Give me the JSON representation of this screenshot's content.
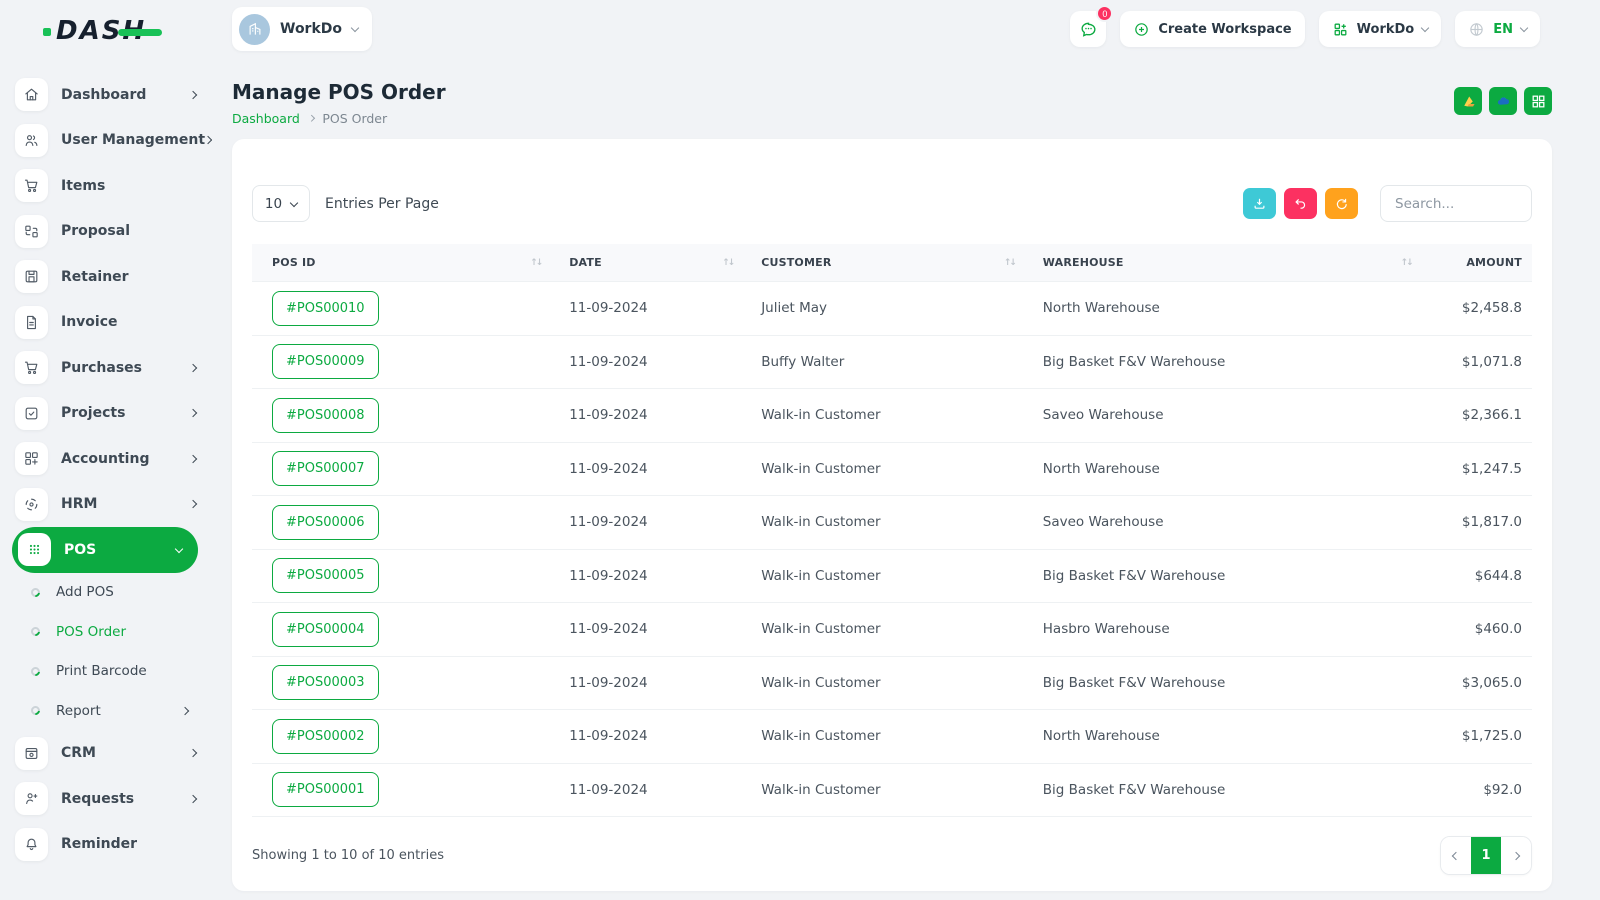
{
  "brand": {
    "logo_text": "DASH"
  },
  "topbar": {
    "workspace_name": "WorkDo",
    "messages_badge": "0",
    "create_workspace_label": "Create Workspace",
    "workdo_label": "WorkDo",
    "language": "EN"
  },
  "sidebar": {
    "items": [
      {
        "label": "Dashboard",
        "icon": "home",
        "chevron": "right"
      },
      {
        "label": "User Management",
        "icon": "users",
        "chevron": "right"
      },
      {
        "label": "Items",
        "icon": "cart"
      },
      {
        "label": "Proposal",
        "icon": "proposal"
      },
      {
        "label": "Retainer",
        "icon": "retainer"
      },
      {
        "label": "Invoice",
        "icon": "invoice"
      },
      {
        "label": "Purchases",
        "icon": "cart",
        "chevron": "right"
      },
      {
        "label": "Projects",
        "icon": "projects",
        "chevron": "right"
      },
      {
        "label": "Accounting",
        "icon": "accounting",
        "chevron": "right"
      },
      {
        "label": "HRM",
        "icon": "hrm",
        "chevron": "right"
      },
      {
        "label": "POS",
        "icon": "pos",
        "chevron": "down",
        "active": true
      },
      {
        "label": "Add POS",
        "type": "sub"
      },
      {
        "label": "POS Order",
        "type": "sub",
        "active": true
      },
      {
        "label": "Print Barcode",
        "type": "sub"
      },
      {
        "label": "Report",
        "type": "sub",
        "chevron": "right"
      },
      {
        "label": "CRM",
        "icon": "crm",
        "chevron": "right"
      },
      {
        "label": "Requests",
        "icon": "requests",
        "chevron": "right"
      },
      {
        "label": "Reminder",
        "icon": "reminder"
      }
    ]
  },
  "page": {
    "title": "Manage POS Order",
    "breadcrumb": [
      "Dashboard",
      "POS Order"
    ],
    "actions": [
      {
        "icon": "google-drive-icon"
      },
      {
        "icon": "onedrive-icon"
      },
      {
        "icon": "grid-icon"
      }
    ]
  },
  "table_controls": {
    "entries_value": "10",
    "entries_label": "Entries Per Page",
    "search_placeholder": "Search...",
    "buttons": [
      {
        "icon": "download-icon",
        "color": "#3ec9d6"
      },
      {
        "icon": "undo-icon",
        "color": "#fc3161"
      },
      {
        "icon": "refresh-icon",
        "color": "#ffa21d"
      }
    ]
  },
  "table": {
    "columns": [
      "POS ID",
      "DATE",
      "CUSTOMER",
      "WAREHOUSE",
      "AMOUNT"
    ],
    "rows": [
      {
        "pos_id": "#POS00010",
        "date": "11-09-2024",
        "customer": "Juliet May",
        "warehouse": "North Warehouse",
        "amount": "$2,458.8"
      },
      {
        "pos_id": "#POS00009",
        "date": "11-09-2024",
        "customer": "Buffy Walter",
        "warehouse": "Big Basket F&V Warehouse",
        "amount": "$1,071.8"
      },
      {
        "pos_id": "#POS00008",
        "date": "11-09-2024",
        "customer": "Walk-in Customer",
        "warehouse": "Saveo Warehouse",
        "amount": "$2,366.1"
      },
      {
        "pos_id": "#POS00007",
        "date": "11-09-2024",
        "customer": "Walk-in Customer",
        "warehouse": "North Warehouse",
        "amount": "$1,247.5"
      },
      {
        "pos_id": "#POS00006",
        "date": "11-09-2024",
        "customer": "Walk-in Customer",
        "warehouse": "Saveo Warehouse",
        "amount": "$1,817.0"
      },
      {
        "pos_id": "#POS00005",
        "date": "11-09-2024",
        "customer": "Walk-in Customer",
        "warehouse": "Big Basket F&V Warehouse",
        "amount": "$644.8"
      },
      {
        "pos_id": "#POS00004",
        "date": "11-09-2024",
        "customer": "Walk-in Customer",
        "warehouse": "Hasbro Warehouse",
        "amount": "$460.0"
      },
      {
        "pos_id": "#POS00003",
        "date": "11-09-2024",
        "customer": "Walk-in Customer",
        "warehouse": "Big Basket F&V Warehouse",
        "amount": "$3,065.0"
      },
      {
        "pos_id": "#POS00002",
        "date": "11-09-2024",
        "customer": "Walk-in Customer",
        "warehouse": "North Warehouse",
        "amount": "$1,725.0"
      },
      {
        "pos_id": "#POS00001",
        "date": "11-09-2024",
        "customer": "Walk-in Customer",
        "warehouse": "Big Basket F&V Warehouse",
        "amount": "$92.0"
      }
    ]
  },
  "footer": {
    "showing_text": "Showing 1 to 10 of 10 entries",
    "current_page": "1"
  },
  "colors": {
    "primary_green": "#0caa41",
    "download_button": "#3ec9d6",
    "undo_button": "#fc3161",
    "refresh_button": "#ffa21d",
    "badge_red": "#fc3161",
    "avatar_blue": "#a9c7de"
  }
}
